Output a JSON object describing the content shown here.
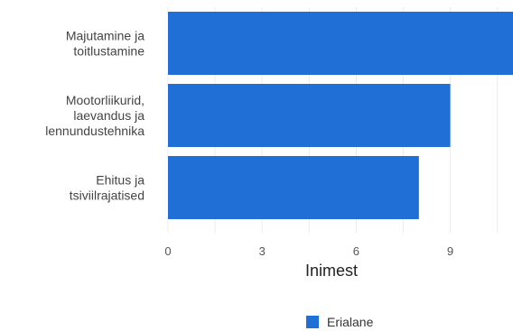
{
  "chart_data": {
    "type": "bar",
    "orientation": "horizontal",
    "categories": [
      "Majutamine ja toitlustamine",
      "Mootorliikurid, laevandus ja lennundustehnika",
      "Ehitus ja tsiviilrajatised"
    ],
    "category_lines": [
      [
        "Majutamine ja",
        "toitlustamine"
      ],
      [
        "Mootorliikurid,",
        "laevandus ja",
        "lennundustehnika"
      ],
      [
        "Ehitus ja",
        "tsiviilrajatised"
      ]
    ],
    "series": [
      {
        "name": "Erialane",
        "color": "#1f6fd6",
        "values": [
          11,
          9,
          8
        ]
      }
    ],
    "xlabel": "Inimest",
    "xlim": [
      0,
      11
    ],
    "xticks": [
      0,
      3,
      6,
      9
    ],
    "grid": true,
    "legend": "bottom"
  }
}
